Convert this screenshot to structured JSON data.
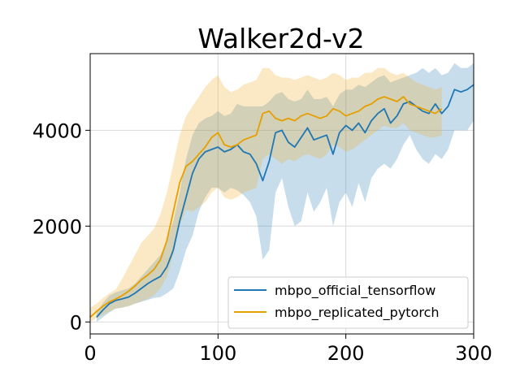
{
  "chart_data": {
    "type": "line",
    "title": "Walker2d-v2",
    "xlabel": "",
    "ylabel": "",
    "xlim": [
      0,
      300
    ],
    "ylim": [
      -250,
      5600
    ],
    "xticks": [
      0,
      100,
      200,
      300
    ],
    "xtick_labels": [
      "0",
      "100",
      "200",
      "300"
    ],
    "yticks": [
      0,
      2000,
      4000
    ],
    "ytick_labels": [
      "0",
      "2000",
      "4000"
    ],
    "grid": true,
    "legend_position": "lower-right",
    "series": [
      {
        "name": "mbpo_official_tensorflow",
        "color": "#1f77b4",
        "fill_color": "#1f77b4",
        "x": [
          5,
          10,
          15,
          20,
          25,
          30,
          35,
          40,
          45,
          50,
          55,
          60,
          65,
          70,
          75,
          80,
          85,
          90,
          95,
          100,
          105,
          110,
          115,
          120,
          125,
          130,
          135,
          140,
          145,
          150,
          155,
          160,
          165,
          170,
          175,
          180,
          185,
          190,
          195,
          200,
          205,
          210,
          215,
          220,
          225,
          230,
          235,
          240,
          245,
          250,
          255,
          260,
          265,
          270,
          275,
          280,
          285,
          290,
          295,
          300
        ],
        "mean": [
          100,
          250,
          380,
          450,
          480,
          520,
          600,
          700,
          800,
          880,
          950,
          1150,
          1500,
          2100,
          2600,
          3100,
          3400,
          3550,
          3600,
          3650,
          3550,
          3600,
          3700,
          3550,
          3500,
          3300,
          2950,
          3350,
          3950,
          4000,
          3750,
          3650,
          3850,
          4050,
          3800,
          3850,
          3900,
          3500,
          3950,
          4100,
          4000,
          4150,
          3950,
          4200,
          4350,
          4450,
          4150,
          4300,
          4550,
          4600,
          4500,
          4400,
          4350,
          4550,
          4350,
          4500,
          4850,
          4800,
          4850,
          4950
        ],
        "upper": [
          200,
          400,
          550,
          620,
          660,
          700,
          800,
          950,
          1100,
          1250,
          1400,
          1700,
          2100,
          2700,
          3400,
          3900,
          4150,
          4250,
          4300,
          4400,
          4300,
          4350,
          4550,
          4500,
          4500,
          4500,
          4500,
          4600,
          4750,
          4800,
          4650,
          4600,
          4650,
          4850,
          4650,
          4650,
          4700,
          4500,
          4750,
          4850,
          4850,
          4950,
          4900,
          5000,
          5100,
          5150,
          5000,
          5050,
          5100,
          5150,
          5200,
          5300,
          5200,
          5300,
          5150,
          5200,
          5400,
          5300,
          5300,
          5400
        ],
        "lower": [
          0,
          100,
          200,
          280,
          300,
          330,
          380,
          420,
          460,
          500,
          520,
          600,
          700,
          1050,
          1500,
          1800,
          2300,
          2600,
          2800,
          2800,
          2700,
          2800,
          2750,
          2650,
          2500,
          2200,
          1300,
          1500,
          2700,
          3000,
          2400,
          2000,
          2100,
          2700,
          2300,
          2500,
          2800,
          2000,
          2500,
          2700,
          2400,
          2900,
          2500,
          3000,
          3200,
          3300,
          3200,
          3400,
          3700,
          3900,
          3600,
          3400,
          3300,
          3500,
          3400,
          3600,
          4000,
          4000,
          4000,
          4200
        ]
      },
      {
        "name": "mbpo_replicated_pytorch",
        "color": "#e69f00",
        "fill_color": "#f0b030",
        "x": [
          0,
          5,
          10,
          15,
          20,
          25,
          30,
          35,
          40,
          45,
          50,
          55,
          60,
          65,
          70,
          75,
          80,
          85,
          90,
          95,
          100,
          105,
          110,
          115,
          120,
          125,
          130,
          135,
          140,
          145,
          150,
          155,
          160,
          165,
          170,
          175,
          180,
          185,
          190,
          195,
          200,
          205,
          210,
          215,
          220,
          225,
          230,
          235,
          240,
          245,
          250,
          255,
          260,
          265,
          270,
          275
        ],
        "mean": [
          100,
          220,
          330,
          420,
          480,
          550,
          640,
          750,
          880,
          980,
          1100,
          1300,
          1700,
          2300,
          2900,
          3250,
          3350,
          3500,
          3650,
          3850,
          3950,
          3700,
          3650,
          3700,
          3800,
          3850,
          3900,
          4350,
          4400,
          4250,
          4200,
          4250,
          4200,
          4300,
          4350,
          4300,
          4250,
          4300,
          4450,
          4400,
          4300,
          4350,
          4400,
          4500,
          4550,
          4650,
          4700,
          4650,
          4600,
          4700,
          4550,
          4500,
          4450,
          4400,
          4350,
          4450
        ],
        "upper": [
          300,
          380,
          500,
          600,
          680,
          900,
          1150,
          1400,
          1650,
          1800,
          1950,
          2250,
          2700,
          3300,
          3900,
          4300,
          4500,
          4700,
          4900,
          5050,
          5150,
          4900,
          4800,
          4850,
          4950,
          5000,
          5050,
          5300,
          5300,
          5150,
          5100,
          5100,
          5050,
          5100,
          5150,
          5100,
          5050,
          5100,
          5200,
          5150,
          5050,
          5100,
          5100,
          5200,
          5200,
          5300,
          5300,
          5200,
          5150,
          5200,
          5100,
          5000,
          4950,
          4900,
          4850,
          4900
        ],
        "lower": [
          0,
          80,
          150,
          220,
          280,
          300,
          330,
          380,
          430,
          480,
          560,
          700,
          950,
          1400,
          2000,
          2350,
          2300,
          2400,
          2500,
          2700,
          2800,
          2600,
          2550,
          2600,
          2700,
          2750,
          2800,
          3400,
          3500,
          3400,
          3300,
          3400,
          3350,
          3450,
          3500,
          3450,
          3400,
          3500,
          3700,
          3650,
          3550,
          3600,
          3700,
          3800,
          3900,
          4000,
          4100,
          4050,
          4050,
          4150,
          4000,
          3950,
          3900,
          3850,
          3850,
          3900
        ]
      }
    ]
  }
}
